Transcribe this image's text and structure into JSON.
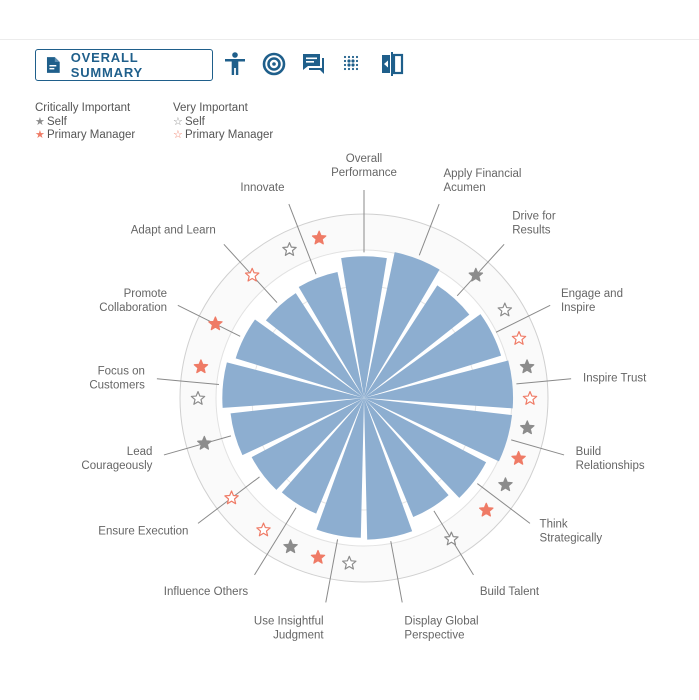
{
  "toolbar": {
    "summary_label": "OVERALL SUMMARY",
    "icons": [
      "document-icon",
      "person-icon",
      "target-icon",
      "chat-icon",
      "dots-grid-icon",
      "compare-icon"
    ]
  },
  "legend": {
    "critical": {
      "title": "Critically Important",
      "self": "Self",
      "manager": "Primary Manager"
    },
    "very": {
      "title": "Very Important",
      "self": "Self",
      "manager": "Primary Manager"
    }
  },
  "colors": {
    "bar": "#8daed0",
    "self": "#8c8c8c",
    "manager": "#ef7b66",
    "accent": "#1f5f8b",
    "ring": "#d0d0d0"
  },
  "chart_data": {
    "type": "radial-bar",
    "categories": [
      {
        "label": "Overall\nPerformance",
        "value": 0.77,
        "marks": []
      },
      {
        "label": "Apply Financial\nAcumen",
        "value": 0.81,
        "marks": []
      },
      {
        "label": "Drive for\nResults",
        "value": 0.73,
        "marks": [
          {
            "who": "self",
            "style": "filled"
          }
        ]
      },
      {
        "label": "Engage and\nInspire",
        "value": 0.78,
        "marks": [
          {
            "who": "self",
            "style": "outline"
          },
          {
            "who": "manager",
            "style": "outline"
          }
        ]
      },
      {
        "label": "Inspire Trust",
        "value": 0.81,
        "marks": [
          {
            "who": "self",
            "style": "filled"
          },
          {
            "who": "manager",
            "style": "outline"
          }
        ]
      },
      {
        "label": "Build\nRelationships",
        "value": 0.81,
        "marks": [
          {
            "who": "self",
            "style": "filled"
          },
          {
            "who": "manager",
            "style": "filled"
          }
        ]
      },
      {
        "label": "Think\nStrategically",
        "value": 0.75,
        "marks": [
          {
            "who": "self",
            "style": "filled"
          },
          {
            "who": "manager",
            "style": "filled"
          }
        ]
      },
      {
        "label": "Build Talent",
        "value": 0.7,
        "marks": [
          {
            "who": "self",
            "style": "outline"
          }
        ]
      },
      {
        "label": "Display Global\nPerspective",
        "value": 0.77,
        "marks": []
      },
      {
        "label": "Use Insightful\nJudgment",
        "value": 0.76,
        "marks": [
          {
            "who": "self",
            "style": "outline"
          },
          {
            "who": "manager",
            "style": "filled"
          }
        ]
      },
      {
        "label": "Influence Others",
        "value": 0.68,
        "marks": [
          {
            "who": "self",
            "style": "filled"
          },
          {
            "who": "manager",
            "style": "outline"
          }
        ]
      },
      {
        "label": "Ensure Execution",
        "value": 0.69,
        "marks": [
          {
            "who": "manager",
            "style": "outline"
          }
        ]
      },
      {
        "label": "Lead\nCourageously",
        "value": 0.73,
        "marks": [
          {
            "who": "self",
            "style": "filled"
          }
        ]
      },
      {
        "label": "Focus on\nCustomers",
        "value": 0.77,
        "marks": [
          {
            "who": "self",
            "style": "outline"
          },
          {
            "who": "manager",
            "style": "filled"
          }
        ]
      },
      {
        "label": "Promote\nCollaboration",
        "value": 0.73,
        "marks": [
          {
            "who": "manager",
            "style": "filled"
          }
        ]
      },
      {
        "label": "Adapt and Learn",
        "value": 0.68,
        "marks": [
          {
            "who": "manager",
            "style": "outline"
          }
        ]
      },
      {
        "label": "Innovate",
        "value": 0.7,
        "marks": [
          {
            "who": "self",
            "style": "outline"
          },
          {
            "who": "manager",
            "style": "filled"
          }
        ]
      }
    ]
  }
}
